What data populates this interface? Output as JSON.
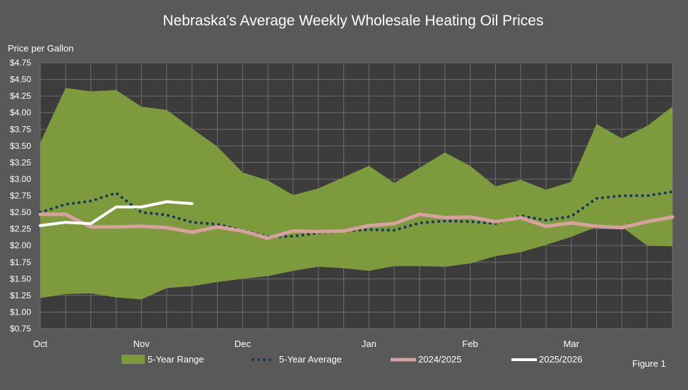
{
  "colors": {
    "background": "#595959",
    "plot_background": "#3c3c3c",
    "grid": "#6e6e6e",
    "range_fill": "#7d9a3c",
    "avg_line": "#17375e",
    "line_2024": "#d9a0a0",
    "line_2025": "#ffffff",
    "text": "#ffffff"
  },
  "chart_data": {
    "type": "area",
    "title": "Nebraska's Average Weekly Wholesale Heating Oil Prices",
    "ylabel": "Price per Gallon",
    "xlabel": "",
    "figure_label": "Figure 1",
    "ylim": [
      0.75,
      4.75
    ],
    "y_ticks": [
      "$0.75",
      "$1.00",
      "$1.25",
      "$1.50",
      "$1.75",
      "$2.00",
      "$2.25",
      "$2.50",
      "$2.75",
      "$3.00",
      "$3.25",
      "$3.50",
      "$3.75",
      "$4.00",
      "$4.25",
      "$4.50",
      "$4.75"
    ],
    "y_tick_values": [
      0.75,
      1.0,
      1.25,
      1.5,
      1.75,
      2.0,
      2.25,
      2.5,
      2.75,
      3.0,
      3.25,
      3.5,
      3.75,
      4.0,
      4.25,
      4.5,
      4.75
    ],
    "x_month_labels": [
      {
        "label": "Oct",
        "week": 0
      },
      {
        "label": "Nov",
        "week": 4
      },
      {
        "label": "Dec",
        "week": 8
      },
      {
        "label": "Jan",
        "week": 13
      },
      {
        "label": "Feb",
        "week": 17
      },
      {
        "label": "Mar",
        "week": 21
      }
    ],
    "weeks": 26,
    "grid": true,
    "legend_position": "bottom",
    "series": [
      {
        "name": "5-Year Range",
        "kind": "range",
        "upper": [
          3.55,
          4.37,
          4.32,
          4.34,
          4.09,
          4.04,
          3.76,
          3.49,
          3.1,
          2.98,
          2.76,
          2.86,
          3.03,
          3.2,
          2.94,
          3.17,
          3.4,
          3.2,
          2.89,
          2.99,
          2.84,
          2.96,
          3.83,
          3.61,
          3.8,
          4.09
        ],
        "lower": [
          1.21,
          1.27,
          1.28,
          1.22,
          1.19,
          1.36,
          1.39,
          1.45,
          1.5,
          1.54,
          1.62,
          1.68,
          1.66,
          1.62,
          1.69,
          1.69,
          1.68,
          1.73,
          1.84,
          1.9,
          2.01,
          2.13,
          2.28,
          2.28,
          2.0,
          1.99
        ]
      },
      {
        "name": "5-Year Average",
        "kind": "dotted",
        "values": [
          2.5,
          2.62,
          2.67,
          2.79,
          2.5,
          2.46,
          2.35,
          2.32,
          2.23,
          2.13,
          2.14,
          2.19,
          2.22,
          2.24,
          2.23,
          2.34,
          2.37,
          2.36,
          2.33,
          2.45,
          2.38,
          2.44,
          2.71,
          2.75,
          2.75,
          2.81
        ]
      },
      {
        "name": "2024/2025",
        "kind": "line",
        "values": [
          2.47,
          2.47,
          2.28,
          2.28,
          2.29,
          2.27,
          2.2,
          2.28,
          2.22,
          2.11,
          2.22,
          2.21,
          2.22,
          2.3,
          2.33,
          2.47,
          2.42,
          2.43,
          2.36,
          2.42,
          2.29,
          2.34,
          2.29,
          2.27,
          2.36,
          2.43
        ]
      },
      {
        "name": "2025/2026",
        "kind": "line",
        "values": [
          2.3,
          2.35,
          2.33,
          2.58,
          2.58,
          2.66,
          2.63
        ]
      }
    ]
  }
}
